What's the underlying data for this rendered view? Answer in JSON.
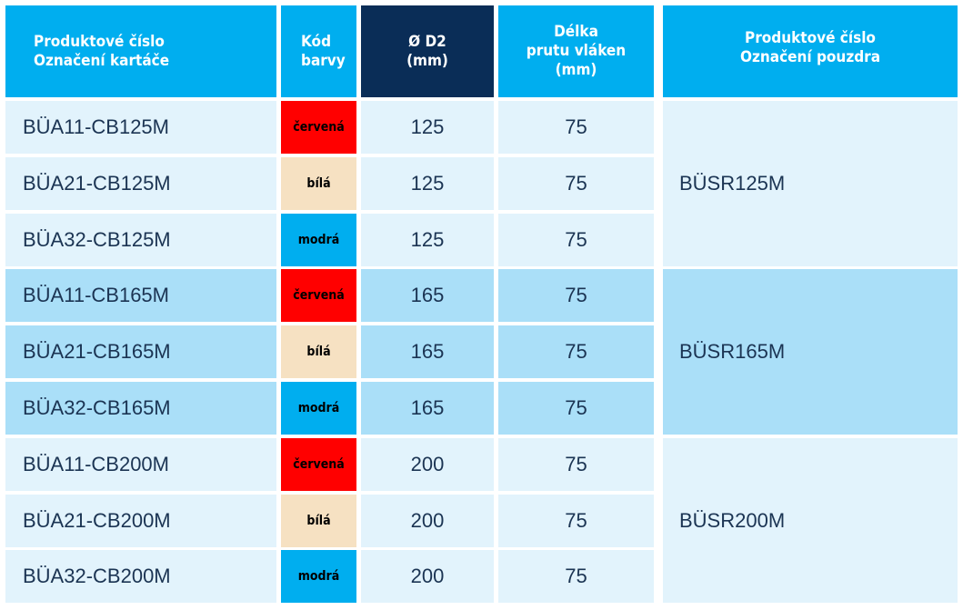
{
  "headers": {
    "product_line1": "Produktové číslo",
    "product_line2": "Označení kartáče",
    "color_line1": "Kód",
    "color_line2": "barvy",
    "d2_line1": "Ø D2",
    "d2_line2": "(mm)",
    "length_line1": "Délka",
    "length_line2": "prutu vláken",
    "length_line3": "(mm)",
    "housing_line1": "Produktové číslo",
    "housing_line2": "Označení pouzdra"
  },
  "rows": [
    {
      "product": "BÜA11-CB125M",
      "color_label": "červená",
      "d2": "125",
      "length": "75"
    },
    {
      "product": "BÜA21-CB125M",
      "color_label": "bílá",
      "d2": "125",
      "length": "75"
    },
    {
      "product": "BÜA32-CB125M",
      "color_label": "modrá",
      "d2": "125",
      "length": "75"
    },
    {
      "product": "BÜA11-CB165M",
      "color_label": "červená",
      "d2": "165",
      "length": "75"
    },
    {
      "product": "BÜA21-CB165M",
      "color_label": "bílá",
      "d2": "165",
      "length": "75"
    },
    {
      "product": "BÜA32-CB165M",
      "color_label": "modrá",
      "d2": "165",
      "length": "75"
    },
    {
      "product": "BÜA11-CB200M",
      "color_label": "červená",
      "d2": "200",
      "length": "75"
    },
    {
      "product": "BÜA21-CB200M",
      "color_label": "bílá",
      "d2": "200",
      "length": "75"
    },
    {
      "product": "BÜA32-CB200M",
      "color_label": "modrá",
      "d2": "200",
      "length": "75"
    }
  ],
  "housings": [
    "BÜSR125M",
    "BÜSR165M",
    "BÜSR200M"
  ],
  "colors": {
    "header_blue": "#00aeef",
    "header_dark": "#0a2d57",
    "row_light": "#e2f3fc",
    "row_mid": "#aadff8",
    "badge_red": "#ff0000",
    "badge_white": "#f6e1c2",
    "badge_blue": "#00aeef",
    "text": "#1b3453"
  }
}
